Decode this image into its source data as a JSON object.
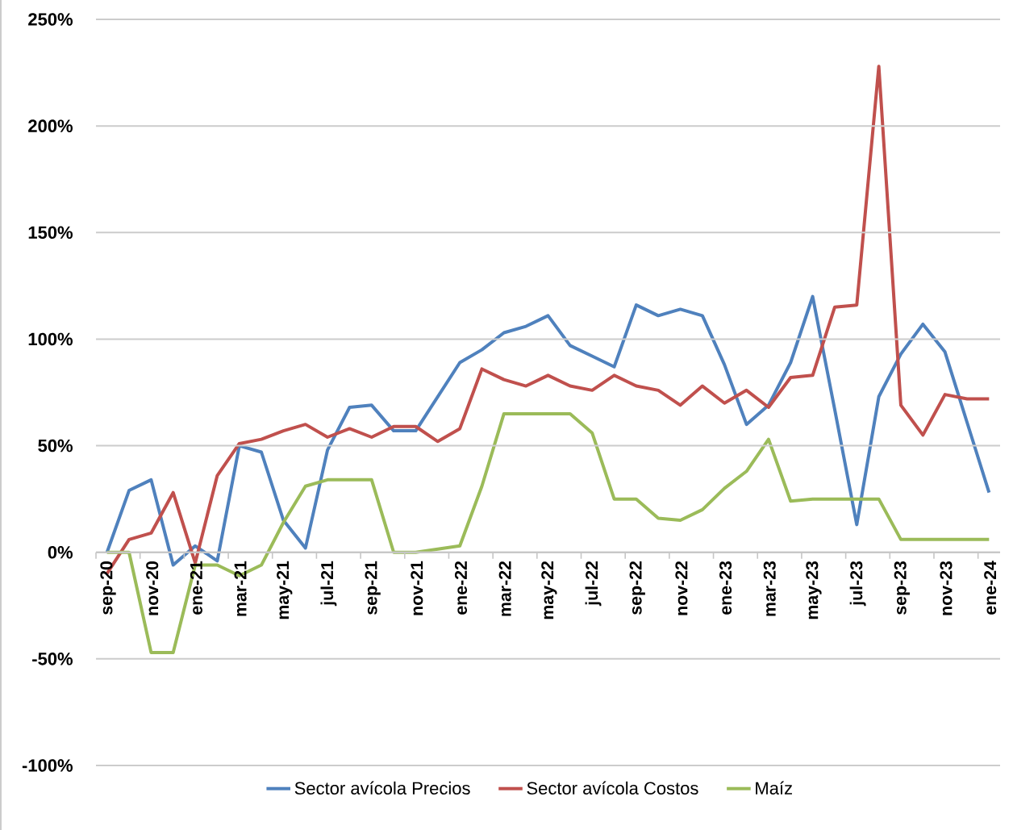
{
  "chart_data": {
    "type": "line",
    "categories": [
      "sep-20",
      null,
      "nov-20",
      null,
      "ene-21",
      null,
      "mar-21",
      null,
      "may-21",
      null,
      "jul-21",
      null,
      "sep-21",
      null,
      "nov-21",
      null,
      "ene-22",
      null,
      "mar-22",
      null,
      "may-22",
      null,
      "jul-22",
      null,
      "sep-22",
      null,
      "nov-22",
      null,
      "ene-23",
      null,
      "mar-23",
      null,
      "may-23",
      null,
      "jul-23",
      null,
      "sep-23",
      null,
      "nov-23",
      null,
      "ene-24"
    ],
    "series": [
      {
        "name": "Sector avícola Precios",
        "color": "#4f81bd",
        "values": [
          0,
          29,
          34,
          -6,
          3,
          -4,
          50,
          47,
          15,
          2,
          48,
          68,
          69,
          57,
          57,
          73,
          89,
          95,
          103,
          106,
          111,
          97,
          92,
          87,
          116,
          111,
          114,
          111,
          88,
          60,
          69,
          89,
          120,
          67,
          13,
          73,
          93,
          107,
          94,
          61,
          28
        ]
      },
      {
        "name": "Sector avícola Costos",
        "color": "#c0504d",
        "values": [
          -10,
          6,
          9,
          28,
          -5,
          36,
          51,
          53,
          57,
          60,
          54,
          58,
          54,
          59,
          59,
          52,
          58,
          86,
          81,
          78,
          83,
          78,
          76,
          83,
          78,
          76,
          69,
          78,
          70,
          76,
          68,
          82,
          83,
          115,
          116,
          228,
          69,
          55,
          74,
          72,
          72
        ]
      },
      {
        "name": "Maíz",
        "color": "#9bbb59",
        "values": [
          0,
          0,
          -47,
          -47,
          -6,
          -6,
          -11,
          -6,
          14,
          31,
          34,
          34,
          34,
          0,
          0,
          1.5,
          3,
          31,
          65,
          65,
          65,
          65,
          56,
          25,
          25,
          16,
          15,
          20,
          30,
          38,
          53,
          24,
          25,
          25,
          25,
          25,
          6,
          6,
          6,
          6,
          6
        ]
      }
    ],
    "ylim": [
      -100,
      250
    ],
    "yticks": [
      {
        "value": -100,
        "label": "-100%"
      },
      {
        "value": -50,
        "label": "-50%"
      },
      {
        "value": 0,
        "label": "0%"
      },
      {
        "value": 50,
        "label": "50%"
      },
      {
        "value": 100,
        "label": "100%"
      },
      {
        "value": 150,
        "label": "150%"
      },
      {
        "value": 200,
        "label": "200%"
      },
      {
        "value": 250,
        "label": "250%"
      }
    ],
    "grid": "y",
    "legend": "bottom"
  }
}
